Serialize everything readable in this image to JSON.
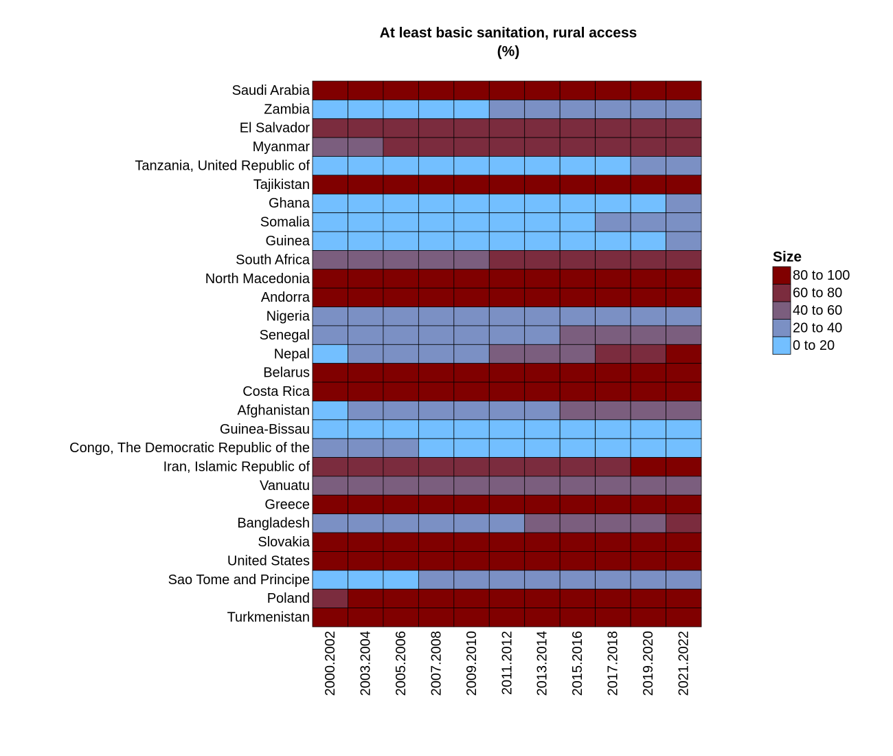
{
  "chart_data": {
    "type": "heatmap",
    "title": "At least basic sanitation, rural access",
    "subtitle": "(%)",
    "x": [
      "2000.2002",
      "2003.2004",
      "2005.2006",
      "2007.2008",
      "2009.2010",
      "2011.2012",
      "2013.2014",
      "2015.2016",
      "2017.2018",
      "2019.2020",
      "2021.2022"
    ],
    "y": [
      "Saudi Arabia",
      "Zambia",
      "El Salvador",
      "Myanmar",
      "Tanzania, United Republic of",
      "Tajikistan",
      "Ghana",
      "Somalia",
      "Guinea",
      "South Africa",
      "North Macedonia",
      "Andorra",
      "Nigeria",
      "Senegal",
      "Nepal",
      "Belarus",
      "Costa Rica",
      "Afghanistan",
      "Guinea-Bissau",
      "Congo, The Democratic Republic of the",
      "Iran, Islamic Republic of",
      "Vanuatu",
      "Greece",
      "Bangladesh",
      "Slovakia",
      "United States",
      "Sao Tome and Principe",
      "Poland",
      "Turkmenistan"
    ],
    "z": [
      [
        90,
        90,
        90,
        90,
        90,
        90,
        90,
        90,
        90,
        90,
        90
      ],
      [
        10,
        10,
        10,
        10,
        10,
        30,
        30,
        30,
        30,
        30,
        30
      ],
      [
        70,
        70,
        70,
        70,
        70,
        70,
        70,
        70,
        70,
        70,
        70
      ],
      [
        50,
        50,
        70,
        70,
        70,
        70,
        70,
        70,
        70,
        70,
        70
      ],
      [
        10,
        10,
        10,
        10,
        10,
        10,
        10,
        10,
        10,
        30,
        30
      ],
      [
        90,
        90,
        90,
        90,
        90,
        90,
        90,
        90,
        90,
        90,
        90
      ],
      [
        10,
        10,
        10,
        10,
        10,
        10,
        10,
        10,
        10,
        10,
        30
      ],
      [
        10,
        10,
        10,
        10,
        10,
        10,
        10,
        10,
        30,
        30,
        30
      ],
      [
        10,
        10,
        10,
        10,
        10,
        10,
        10,
        10,
        10,
        10,
        30
      ],
      [
        50,
        50,
        50,
        50,
        50,
        70,
        70,
        70,
        70,
        70,
        70
      ],
      [
        90,
        90,
        90,
        90,
        90,
        90,
        90,
        90,
        90,
        90,
        90
      ],
      [
        90,
        90,
        90,
        90,
        90,
        90,
        90,
        90,
        90,
        90,
        90
      ],
      [
        30,
        30,
        30,
        30,
        30,
        30,
        30,
        30,
        30,
        30,
        30
      ],
      [
        30,
        30,
        30,
        30,
        30,
        30,
        30,
        50,
        50,
        50,
        50
      ],
      [
        10,
        30,
        30,
        30,
        30,
        50,
        50,
        50,
        70,
        70,
        90
      ],
      [
        90,
        90,
        90,
        90,
        90,
        90,
        90,
        90,
        90,
        90,
        90
      ],
      [
        90,
        90,
        90,
        90,
        90,
        90,
        90,
        90,
        90,
        90,
        90
      ],
      [
        10,
        30,
        30,
        30,
        30,
        30,
        30,
        50,
        50,
        50,
        50
      ],
      [
        10,
        10,
        10,
        10,
        10,
        10,
        10,
        10,
        10,
        10,
        10
      ],
      [
        30,
        30,
        30,
        10,
        10,
        10,
        10,
        10,
        10,
        10,
        10
      ],
      [
        70,
        70,
        70,
        70,
        70,
        70,
        70,
        70,
        70,
        90,
        90
      ],
      [
        50,
        50,
        50,
        50,
        50,
        50,
        50,
        50,
        50,
        50,
        50
      ],
      [
        90,
        90,
        90,
        90,
        90,
        90,
        90,
        90,
        90,
        90,
        90
      ],
      [
        30,
        30,
        30,
        30,
        30,
        30,
        50,
        50,
        50,
        50,
        70
      ],
      [
        90,
        90,
        90,
        90,
        90,
        90,
        90,
        90,
        90,
        90,
        90
      ],
      [
        90,
        90,
        90,
        90,
        90,
        90,
        90,
        90,
        90,
        90,
        90
      ],
      [
        10,
        10,
        10,
        30,
        30,
        30,
        30,
        30,
        30,
        30,
        30
      ],
      [
        70,
        90,
        90,
        90,
        90,
        90,
        90,
        90,
        90,
        90,
        90
      ],
      [
        90,
        90,
        90,
        90,
        90,
        90,
        90,
        90,
        90,
        90,
        90
      ]
    ],
    "legend": {
      "title": "Size",
      "bins": [
        {
          "label": "80 to 100",
          "range": [
            80,
            100
          ],
          "color": "#800000"
        },
        {
          "label": "60 to 80",
          "range": [
            60,
            80
          ],
          "color": "#7b2c3e"
        },
        {
          "label": "40 to 60",
          "range": [
            40,
            60
          ],
          "color": "#7b5e7e"
        },
        {
          "label": "20 to 40",
          "range": [
            20,
            40
          ],
          "color": "#7b90c4"
        },
        {
          "label": "0 to 20",
          "range": [
            0,
            20
          ],
          "color": "#73bfff"
        }
      ]
    }
  }
}
